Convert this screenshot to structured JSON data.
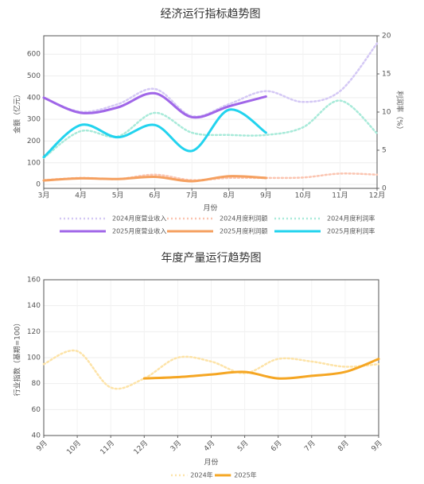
{
  "chart_data": [
    {
      "type": "line",
      "title": "经济运行指标趋势图",
      "x_label": "月份",
      "y_label": "金额（亿元）",
      "y2_label": "利润率（%）",
      "categories": [
        "3月",
        "4月",
        "5月",
        "6月",
        "7月",
        "8月",
        "9月",
        "10月",
        "11月",
        "12月"
      ],
      "ylim": [
        -18,
        685
      ],
      "yticks": [
        0,
        100,
        200,
        300,
        400,
        500,
        600
      ],
      "y2lim": [
        0,
        20
      ],
      "y2ticks": [
        0,
        5,
        10,
        15,
        20
      ],
      "grid": true,
      "legend": "bottom",
      "series": [
        {
          "name": "2024月度营业收入",
          "color": "#d4c8f5",
          "line_style": "dotted",
          "values": [
            400,
            335,
            370,
            440,
            315,
            370,
            430,
            380,
            430,
            650
          ]
        },
        {
          "name": "2024月度利润额",
          "color": "#fbc4b0",
          "line_style": "dotted",
          "values": [
            20,
            30,
            25,
            45,
            20,
            30,
            30,
            32,
            50,
            45
          ]
        },
        {
          "name": "2024月度利润率",
          "color": "#a8ead9",
          "line_style": "dotted",
          "axis": "y2",
          "values": [
            4.0,
            7.5,
            6.8,
            9.9,
            7.3,
            7.0,
            7.0,
            8.0,
            11.5,
            7.2
          ]
        },
        {
          "name": "2025月度营业收入",
          "color": "#a066e8",
          "line_style": "solid",
          "values": [
            400,
            330,
            355,
            420,
            310,
            360,
            405,
            null,
            null,
            null
          ]
        },
        {
          "name": "2025月度利润额",
          "color": "#f5a060",
          "line_style": "solid",
          "values": [
            18,
            28,
            25,
            35,
            15,
            38,
            30,
            null,
            null,
            null
          ]
        },
        {
          "name": "2025月度利润率",
          "color": "#22d3ee",
          "line_style": "solid",
          "axis": "y2",
          "values": [
            4.1,
            8.3,
            6.7,
            8.3,
            4.9,
            10.3,
            7.3,
            null,
            null,
            null
          ]
        }
      ]
    },
    {
      "type": "line",
      "title": "年度产量运行趋势图",
      "x_label": "月份",
      "y_label": "行业指数（基期=100）",
      "categories": [
        "9月",
        "10月",
        "11月",
        "12月",
        "3月",
        "4月",
        "5月",
        "6月",
        "7月",
        "8月",
        "9月"
      ],
      "ylim": [
        40,
        160
      ],
      "yticks": [
        40,
        60,
        80,
        100,
        120,
        140,
        160
      ],
      "grid": true,
      "legend": "bottom",
      "series": [
        {
          "name": "2024年",
          "color": "#fde3a7",
          "line_style": "dotted",
          "values": [
            95,
            105,
            77,
            84,
            100,
            97,
            88,
            99,
            97,
            93,
            95
          ]
        },
        {
          "name": "2025年",
          "color": "#f5a623",
          "line_style": "solid",
          "values": [
            null,
            null,
            null,
            84,
            85,
            87,
            89,
            84,
            86,
            89,
            99
          ]
        }
      ]
    }
  ]
}
